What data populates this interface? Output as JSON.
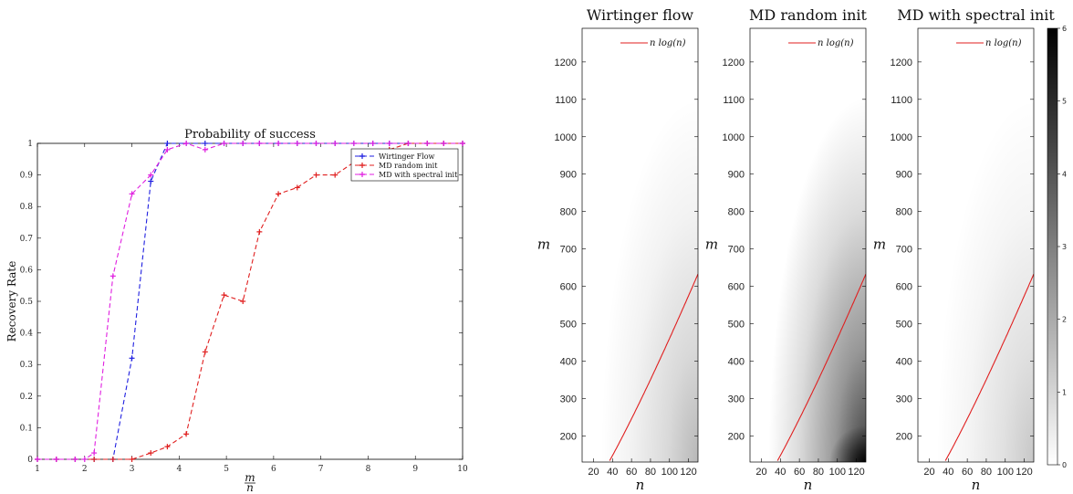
{
  "chart_data": [
    {
      "type": "line",
      "title": "Probability of success",
      "xlabel_num": "m",
      "xlabel_den": "n",
      "ylabel": "Recovery Rate",
      "xlim": [
        1,
        10
      ],
      "ylim": [
        0,
        1
      ],
      "xticks": [
        "1",
        "2",
        "3",
        "4",
        "5",
        "6",
        "7",
        "8",
        "9",
        "10"
      ],
      "yticks": [
        "0",
        "0.1",
        "0.2",
        "0.3",
        "0.4",
        "0.5",
        "0.6",
        "0.7",
        "0.8",
        "0.9",
        "1"
      ],
      "legend_position": "top-right",
      "series": [
        {
          "name": "Wirtinger Flow",
          "color": "#1f1fe0",
          "x": [
            1,
            1.4,
            1.8,
            2.2,
            2.6,
            3.0,
            3.4,
            3.75,
            4.15,
            4.55,
            4.95,
            5.35,
            5.7,
            6.1,
            6.5,
            6.9,
            7.3,
            7.7,
            8.1,
            8.45,
            8.85,
            9.25,
            9.6,
            10
          ],
          "y": [
            0,
            0,
            0,
            0,
            0,
            0.32,
            0.88,
            1.0,
            1.0,
            1.0,
            1.0,
            1.0,
            1.0,
            1.0,
            1.0,
            1.0,
            1.0,
            1.0,
            1.0,
            1.0,
            1.0,
            1.0,
            1.0,
            1.0
          ]
        },
        {
          "name": "MD random init",
          "color": "#e01f1f",
          "x": [
            1,
            1.4,
            1.8,
            2.2,
            2.6,
            3.0,
            3.4,
            3.75,
            4.15,
            4.55,
            4.95,
            5.35,
            5.7,
            6.1,
            6.5,
            6.9,
            7.3,
            7.7,
            8.1,
            8.45,
            8.85,
            9.25,
            9.6,
            10
          ],
          "y": [
            0,
            0,
            0,
            0,
            0,
            0,
            0.02,
            0.04,
            0.08,
            0.34,
            0.52,
            0.5,
            0.72,
            0.84,
            0.86,
            0.9,
            0.9,
            0.94,
            0.96,
            0.98,
            1.0,
            1.0,
            1.0,
            1.0
          ]
        },
        {
          "name": "MD with spectral init",
          "color": "#e01fe0",
          "x": [
            1,
            1.4,
            1.8,
            2.0,
            2.2,
            2.6,
            3.0,
            3.4,
            3.75,
            4.15,
            4.55,
            4.95,
            5.35,
            5.7,
            6.1,
            6.5,
            6.9,
            7.3,
            7.7,
            8.1,
            8.45,
            8.85,
            9.25,
            9.6,
            10
          ],
          "y": [
            0,
            0,
            0,
            0,
            0.02,
            0.58,
            0.84,
            0.9,
            0.98,
            1.0,
            0.98,
            1.0,
            1.0,
            1.0,
            1.0,
            1.0,
            1.0,
            1.0,
            1.0,
            1.0,
            1.0,
            1.0,
            1.0,
            1.0,
            1.0
          ]
        }
      ]
    },
    {
      "type": "heatmap",
      "panels": [
        {
          "title": "Wirtinger flow",
          "intensity": 0.28,
          "dark_spot": false
        },
        {
          "title": "MD random init",
          "intensity": 0.75,
          "dark_spot": true
        },
        {
          "title": "MD with spectral init",
          "intensity": 0.22,
          "dark_spot": false
        }
      ],
      "xlabel": "n",
      "ylabel": "m",
      "xlim": [
        8,
        130
      ],
      "ylim": [
        130,
        1290
      ],
      "xticks": [
        20,
        40,
        60,
        80,
        100,
        120
      ],
      "yticks": [
        200,
        300,
        400,
        500,
        600,
        700,
        800,
        900,
        1000,
        1100,
        1200
      ],
      "legend_label": "n log(n)",
      "legend_position": "top-right",
      "curve_color": "#e01f1f",
      "colormap": "gray_r",
      "colorbar_range": [
        0,
        6
      ],
      "colorbar_ticks": [
        "0",
        "1",
        "2",
        "3",
        "4",
        "5",
        "6"
      ]
    }
  ]
}
